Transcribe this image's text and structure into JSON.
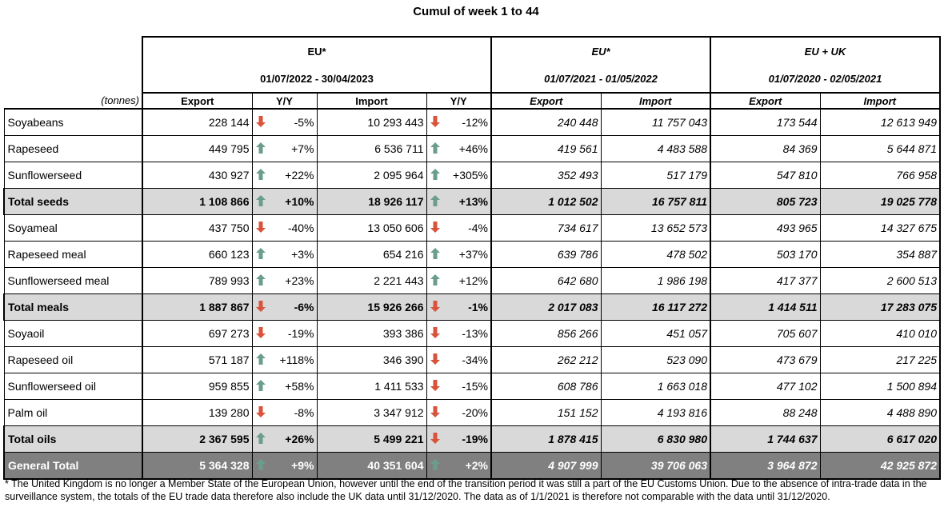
{
  "title": "Cumul of week 1 to 44",
  "units_label": "(tonnes)",
  "groups": [
    {
      "name": "EU*",
      "period": "01/07/2022 - 30/04/2023"
    },
    {
      "name": "EU*",
      "period": "01/07/2021 - 01/05/2022"
    },
    {
      "name": "EU + UK",
      "period": "01/07/2020 - 02/05/2021"
    }
  ],
  "columns": {
    "export": "Export",
    "yy": "Y/Y",
    "import": "Import"
  },
  "colors": {
    "up": "#6a9e8a",
    "down": "#d9533a",
    "total_bg": "#d9d9d9",
    "grand_bg": "#808080"
  },
  "rows": [
    {
      "label": "Soyabeans",
      "type": "data",
      "exp": "228 144",
      "exp_dir": "down",
      "exp_yy": "-5%",
      "imp": "10 293 443",
      "imp_dir": "down",
      "imp_yy": "-12%",
      "p_exp": "240 448",
      "p_imp": "11 757 043",
      "u_exp": "173 544",
      "u_imp": "12 613 949"
    },
    {
      "label": "Rapeseed",
      "type": "data",
      "exp": "449 795",
      "exp_dir": "up",
      "exp_yy": "+7%",
      "imp": "6 536 711",
      "imp_dir": "up",
      "imp_yy": "+46%",
      "p_exp": "419 561",
      "p_imp": "4 483 588",
      "u_exp": "84 369",
      "u_imp": "5 644 871"
    },
    {
      "label": "Sunflowerseed",
      "type": "data",
      "exp": "430 927",
      "exp_dir": "up",
      "exp_yy": "+22%",
      "imp": "2 095 964",
      "imp_dir": "up",
      "imp_yy": "+305%",
      "p_exp": "352 493",
      "p_imp": "517 179",
      "u_exp": "547 810",
      "u_imp": "766 958"
    },
    {
      "label": "Total seeds",
      "type": "total",
      "exp": "1 108 866",
      "exp_dir": "up",
      "exp_yy": "+10%",
      "imp": "18 926 117",
      "imp_dir": "up",
      "imp_yy": "+13%",
      "p_exp": "1 012 502",
      "p_imp": "16 757 811",
      "u_exp": "805 723",
      "u_imp": "19 025 778"
    },
    {
      "label": "Soyameal",
      "type": "data",
      "exp": "437 750",
      "exp_dir": "down",
      "exp_yy": "-40%",
      "imp": "13 050 606",
      "imp_dir": "down",
      "imp_yy": "-4%",
      "p_exp": "734 617",
      "p_imp": "13 652 573",
      "u_exp": "493 965",
      "u_imp": "14 327 675"
    },
    {
      "label": "Rapeseed meal",
      "type": "data",
      "exp": "660 123",
      "exp_dir": "up",
      "exp_yy": "+3%",
      "imp": "654 216",
      "imp_dir": "up",
      "imp_yy": "+37%",
      "p_exp": "639 786",
      "p_imp": "478 502",
      "u_exp": "503 170",
      "u_imp": "354 887"
    },
    {
      "label": "Sunflowerseed meal",
      "type": "data",
      "exp": "789 993",
      "exp_dir": "up",
      "exp_yy": "+23%",
      "imp": "2 221 443",
      "imp_dir": "up",
      "imp_yy": "+12%",
      "p_exp": "642 680",
      "p_imp": "1 986 198",
      "u_exp": "417 377",
      "u_imp": "2 600 513"
    },
    {
      "label": "Total meals",
      "type": "total",
      "exp": "1 887 867",
      "exp_dir": "down",
      "exp_yy": "-6%",
      "imp": "15 926 266",
      "imp_dir": "down",
      "imp_yy": "-1%",
      "p_exp": "2 017 083",
      "p_imp": "16 117 272",
      "u_exp": "1 414 511",
      "u_imp": "17 283 075"
    },
    {
      "label": "Soyaoil",
      "type": "data",
      "exp": "697 273",
      "exp_dir": "down",
      "exp_yy": "-19%",
      "imp": "393 386",
      "imp_dir": "down",
      "imp_yy": "-13%",
      "p_exp": "856 266",
      "p_imp": "451 057",
      "u_exp": "705 607",
      "u_imp": "410 010"
    },
    {
      "label": "Rapeseed oil",
      "type": "data",
      "exp": "571 187",
      "exp_dir": "up",
      "exp_yy": "+118%",
      "imp": "346 390",
      "imp_dir": "down",
      "imp_yy": "-34%",
      "p_exp": "262 212",
      "p_imp": "523 090",
      "u_exp": "473 679",
      "u_imp": "217 225"
    },
    {
      "label": "Sunflowerseed oil",
      "type": "data",
      "exp": "959 855",
      "exp_dir": "up",
      "exp_yy": "+58%",
      "imp": "1 411 533",
      "imp_dir": "down",
      "imp_yy": "-15%",
      "p_exp": "608 786",
      "p_imp": "1 663 018",
      "u_exp": "477 102",
      "u_imp": "1 500 894"
    },
    {
      "label": "Palm oil",
      "type": "data",
      "exp": "139 280",
      "exp_dir": "down",
      "exp_yy": "-8%",
      "imp": "3 347 912",
      "imp_dir": "down",
      "imp_yy": "-20%",
      "p_exp": "151 152",
      "p_imp": "4 193 816",
      "u_exp": "88 248",
      "u_imp": "4 488 890"
    },
    {
      "label": "Total oils",
      "type": "total",
      "exp": "2 367 595",
      "exp_dir": "up",
      "exp_yy": "+26%",
      "imp": "5 499 221",
      "imp_dir": "down",
      "imp_yy": "-19%",
      "p_exp": "1 878 415",
      "p_imp": "6 830 980",
      "u_exp": "1 744 637",
      "u_imp": "6 617 020"
    },
    {
      "label": "General Total",
      "type": "grand",
      "exp": "5 364 328",
      "exp_dir": "up",
      "exp_yy": "+9%",
      "imp": "40 351 604",
      "imp_dir": "up",
      "imp_yy": "+2%",
      "p_exp": "4 907 999",
      "p_imp": "39 706 063",
      "u_exp": "3 964 872",
      "u_imp": "42 925 872"
    }
  ],
  "footnote": "* The United Kingdom is no longer a Member State of the European Union, however until the end of the transition period it was still a part of the EU Customs Union. Due to the absence of intra-trade data in the surveillance system, the totals of the EU trade data  therefore also include the UK data until 31/12/2020. The data as of 1/1/2021 is therefore not comparable with the data until 31/12/2020."
}
